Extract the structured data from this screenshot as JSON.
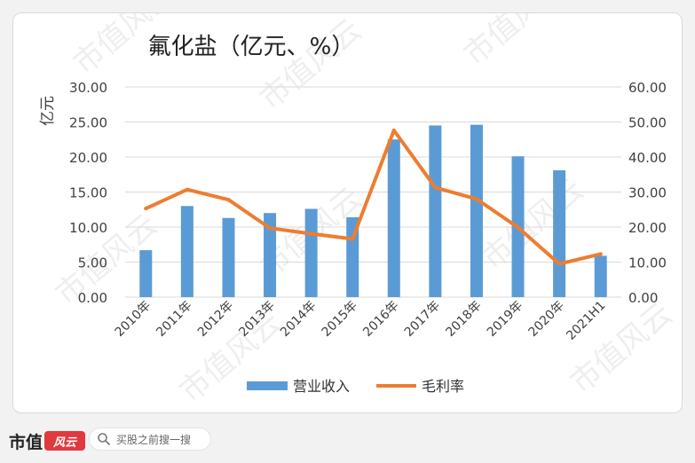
{
  "watermark": "市值风云",
  "footer": {
    "brand_text": "市值",
    "brand_mark_text": "风云",
    "search_placeholder": "买股之前搜一搜"
  },
  "colors": {
    "bar": "#5b9bd5",
    "line": "#ed7d31",
    "grid": "#d9d9d9",
    "text": "#404040"
  },
  "chart_data": {
    "type": "bar",
    "title": "氟化盐（亿元、%）",
    "ylabel": "亿元",
    "y2label": "",
    "categories": [
      "2010年",
      "2011年",
      "2012年",
      "2013年",
      "2014年",
      "2015年",
      "2016年",
      "2017年",
      "2018年",
      "2019年",
      "2020年",
      "2021H1"
    ],
    "ylim": [
      0,
      30
    ],
    "y2lim": [
      0,
      60
    ],
    "yticks": [
      "0.00",
      "5.00",
      "10.00",
      "15.00",
      "20.00",
      "25.00",
      "30.00"
    ],
    "y2ticks": [
      "0.00",
      "10.00",
      "20.00",
      "30.00",
      "40.00",
      "50.00",
      "60.00"
    ],
    "grid": true,
    "legend_position": "bottom",
    "series": [
      {
        "name": "营业收入",
        "type": "bar",
        "axis": "left",
        "values": [
          6.7,
          13.0,
          11.3,
          12.0,
          12.6,
          11.4,
          22.5,
          24.5,
          24.6,
          20.1,
          18.1,
          5.9
        ]
      },
      {
        "name": "毛利率",
        "type": "line",
        "axis": "right",
        "values": [
          25.3,
          30.7,
          27.8,
          19.7,
          18.1,
          16.6,
          47.6,
          31.3,
          28.0,
          19.9,
          9.5,
          12.3
        ]
      }
    ]
  }
}
